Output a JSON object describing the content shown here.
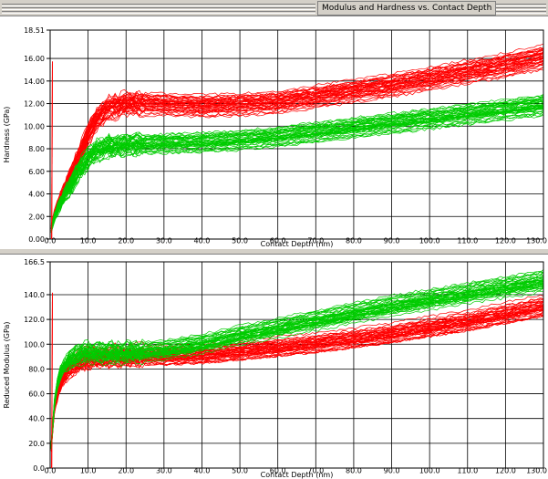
{
  "window": {
    "title": "Modulus and Hardness vs. Contact Depth"
  },
  "colors": {
    "series_red": "#ff0000",
    "series_green": "#00cc00",
    "grid": "#000000",
    "background": "#ffffff",
    "chrome": "#d4d0c8"
  },
  "chart_data": [
    {
      "type": "line",
      "title": "",
      "xlabel": "Contact Depth (nm)",
      "ylabel": "Hardness (GPa)",
      "xlim": [
        0,
        130
      ],
      "ylim": [
        0,
        18.51
      ],
      "x_ticks": [
        "0.0",
        "10.0",
        "20.0",
        "30.0",
        "40.0",
        "50.0",
        "60.0",
        "70.0",
        "80.0",
        "90.0",
        "100.0",
        "110.0",
        "120.0",
        "130.0"
      ],
      "y_ticks": [
        "0.00",
        "2.00",
        "4.00",
        "6.00",
        "8.00",
        "10.00",
        "12.00",
        "14.00",
        "16.00",
        "18.51"
      ],
      "grid": true,
      "series": [
        {
          "color": "red",
          "x": [
            0,
            1,
            2,
            4,
            6,
            8,
            10,
            12,
            15,
            20,
            30,
            40,
            50,
            60,
            70,
            80,
            90,
            100,
            110,
            120,
            130
          ],
          "values": [
            0.5,
            2.0,
            3.0,
            4.6,
            6.0,
            7.5,
            9.2,
            10.5,
            11.5,
            12.0,
            11.9,
            11.8,
            11.9,
            12.1,
            12.6,
            13.1,
            13.6,
            14.2,
            14.8,
            15.4,
            16.1
          ]
        },
        {
          "color": "green",
          "x": [
            0,
            1,
            2,
            4,
            6,
            8,
            10,
            12,
            15,
            20,
            30,
            40,
            50,
            60,
            70,
            80,
            90,
            100,
            110,
            120,
            130
          ],
          "values": [
            0.5,
            1.8,
            2.7,
            4.0,
            5.2,
            6.3,
            7.2,
            7.8,
            8.2,
            8.4,
            8.5,
            8.6,
            8.8,
            9.1,
            9.5,
            9.9,
            10.3,
            10.7,
            11.1,
            11.5,
            11.9
          ]
        }
      ]
    },
    {
      "type": "line",
      "title": "",
      "xlabel": "Contact Depth (nm)",
      "ylabel": "Reduced Modulus (GPa)",
      "xlim": [
        0,
        130
      ],
      "ylim": [
        0,
        166.5
      ],
      "x_ticks": [
        "0.0",
        "10.0",
        "20.0",
        "30.0",
        "40.0",
        "50.0",
        "60.0",
        "70.0",
        "80.0",
        "90.0",
        "100.0",
        "110.0",
        "120.0",
        "130.0"
      ],
      "y_ticks": [
        "0.0",
        "20.0",
        "40.0",
        "60.0",
        "80.0",
        "100.0",
        "120.0",
        "140.0",
        "166.5"
      ],
      "grid": true,
      "series": [
        {
          "color": "red",
          "x": [
            0,
            1,
            2,
            3,
            5,
            8,
            10,
            15,
            20,
            30,
            40,
            50,
            60,
            70,
            80,
            90,
            100,
            110,
            120,
            130
          ],
          "values": [
            5,
            45,
            60,
            70,
            80,
            86,
            88,
            89,
            90,
            90,
            91,
            94,
            97,
            100,
            104,
            108,
            113,
            118,
            124,
            130
          ]
        },
        {
          "color": "green",
          "x": [
            0,
            1,
            2,
            3,
            5,
            8,
            10,
            15,
            20,
            30,
            40,
            50,
            60,
            70,
            80,
            90,
            100,
            110,
            120,
            130
          ],
          "values": [
            5,
            50,
            70,
            80,
            88,
            93,
            94,
            94,
            94,
            96,
            101,
            108,
            114,
            120,
            126,
            132,
            137,
            142,
            147,
            152
          ]
        }
      ]
    }
  ]
}
